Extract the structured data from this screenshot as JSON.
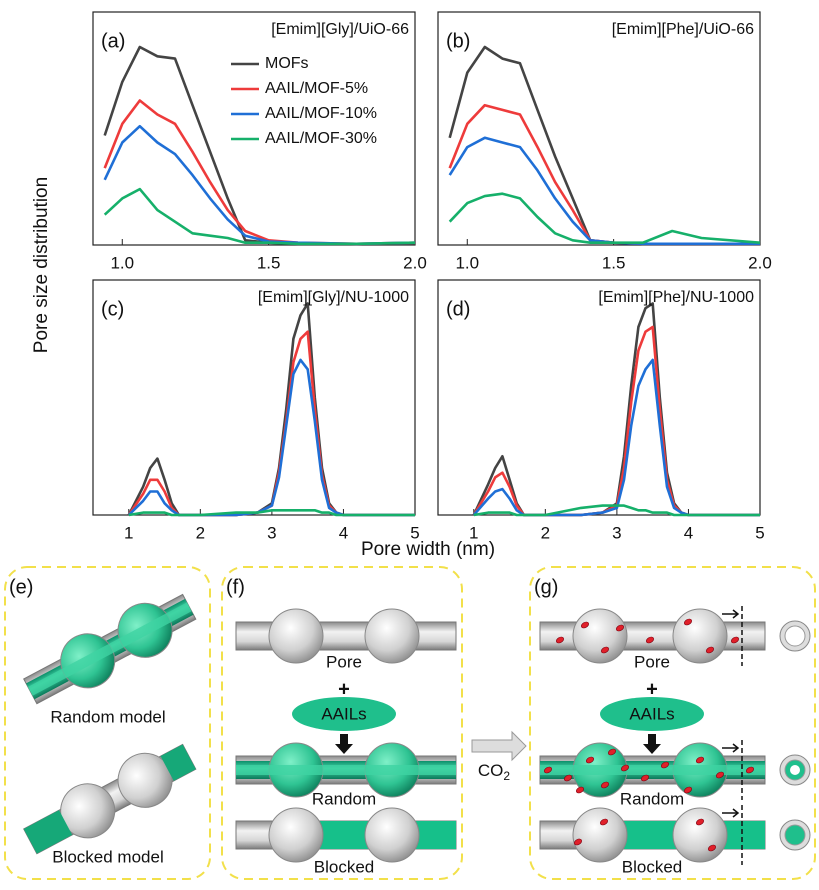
{
  "figure": {
    "y_label": "Pore size distribution",
    "x_label": "Pore width (nm)"
  },
  "chart_data": [
    {
      "type": "line",
      "panel": "(a)",
      "title": "[Emim][Gly]/UiO-66",
      "x": [
        0.94,
        1.0,
        1.06,
        1.12,
        1.18,
        1.24,
        1.3,
        1.36,
        1.42,
        1.5,
        1.6,
        1.8,
        2.0
      ],
      "xlim": [
        0.9,
        2.0
      ],
      "xticks": [
        {
          "value": 1,
          "label": "1.0"
        },
        1.5,
        {
          "value": 2,
          "label": "2.0"
        }
      ],
      "ylim": [
        0,
        1
      ],
      "legend": "upper center",
      "series": [
        {
          "name": "MOFs",
          "color": "#444444",
          "values": [
            0.47,
            0.7,
            0.85,
            0.81,
            0.8,
            0.6,
            0.4,
            0.2,
            0.02,
            0.01,
            0.005,
            0.005,
            0.005
          ]
        },
        {
          "name": "AAIL/MOF-5%",
          "color": "#ee3b3b",
          "values": [
            0.33,
            0.52,
            0.62,
            0.56,
            0.52,
            0.4,
            0.27,
            0.15,
            0.06,
            0.02,
            0.01,
            0.005,
            0.01
          ]
        },
        {
          "name": "AAIL/MOF-10%",
          "color": "#1f6fd6",
          "values": [
            0.28,
            0.44,
            0.51,
            0.44,
            0.39,
            0.3,
            0.2,
            0.11,
            0.04,
            0.015,
            0.01,
            0.005,
            0.01
          ]
        },
        {
          "name": "AAIL/MOF-30%",
          "color": "#16b06a",
          "values": [
            0.13,
            0.2,
            0.24,
            0.15,
            0.1,
            0.05,
            0.04,
            0.03,
            0.01,
            0.01,
            0.005,
            0.005,
            0.01
          ]
        }
      ]
    },
    {
      "type": "line",
      "panel": "(b)",
      "title": "[Emim][Phe]/UiO-66",
      "x": [
        0.94,
        1.0,
        1.06,
        1.12,
        1.18,
        1.24,
        1.3,
        1.36,
        1.42,
        1.5,
        1.6,
        1.7,
        1.8,
        2.0
      ],
      "xlim": [
        0.9,
        2.0
      ],
      "xticks": [
        {
          "value": 1,
          "label": "1.0"
        },
        1.5,
        {
          "value": 2,
          "label": "2.0"
        }
      ],
      "ylim": [
        0,
        1
      ],
      "series": [
        {
          "color": "#444444",
          "values": [
            0.46,
            0.74,
            0.85,
            0.8,
            0.78,
            0.58,
            0.38,
            0.2,
            0.02,
            0.01,
            0.005,
            0.005,
            0.005,
            0.005
          ]
        },
        {
          "color": "#ee3b3b",
          "values": [
            0.33,
            0.52,
            0.6,
            0.58,
            0.56,
            0.42,
            0.27,
            0.15,
            0.02,
            0.01,
            0.005,
            0.005,
            0.005,
            0.005
          ]
        },
        {
          "color": "#1f6fd6",
          "values": [
            0.3,
            0.42,
            0.46,
            0.44,
            0.42,
            0.32,
            0.2,
            0.1,
            0.02,
            0.01,
            0.005,
            0.005,
            0.005,
            0.005
          ]
        },
        {
          "color": "#16b06a",
          "values": [
            0.1,
            0.18,
            0.21,
            0.22,
            0.2,
            0.12,
            0.05,
            0.02,
            0.01,
            0.01,
            0.01,
            0.06,
            0.03,
            0.01
          ]
        }
      ]
    },
    {
      "type": "line",
      "panel": "(c)",
      "title": "[Emim][Gly]/NU-1000",
      "x": [
        1.0,
        1.2,
        1.3,
        1.4,
        1.5,
        1.6,
        1.7,
        2.0,
        2.5,
        2.8,
        3.0,
        3.1,
        3.2,
        3.3,
        3.4,
        3.5,
        3.6,
        3.7,
        3.8,
        3.9,
        4.0,
        4.5,
        5.0
      ],
      "xlim": [
        0.5,
        5
      ],
      "xticks": [
        1,
        2,
        3,
        4,
        5
      ],
      "ylim": [
        0,
        1
      ],
      "series": [
        {
          "color": "#444444",
          "values": [
            0,
            0.12,
            0.2,
            0.24,
            0.15,
            0.05,
            0,
            0,
            0,
            0.01,
            0.05,
            0.2,
            0.45,
            0.75,
            0.85,
            0.9,
            0.5,
            0.2,
            0.05,
            0.01,
            0,
            0,
            0
          ]
        },
        {
          "color": "#ee3b3b",
          "values": [
            0,
            0.09,
            0.15,
            0.15,
            0.1,
            0.03,
            0,
            0,
            0,
            0.01,
            0.04,
            0.18,
            0.4,
            0.65,
            0.75,
            0.78,
            0.45,
            0.17,
            0.04,
            0.01,
            0,
            0,
            0
          ]
        },
        {
          "color": "#1f6fd6",
          "values": [
            0,
            0.06,
            0.1,
            0.1,
            0.05,
            0.02,
            0,
            0,
            0,
            0.01,
            0.04,
            0.16,
            0.38,
            0.6,
            0.66,
            0.62,
            0.4,
            0.15,
            0.03,
            0.01,
            0,
            0,
            0
          ]
        },
        {
          "color": "#16b06a",
          "values": [
            0,
            0.01,
            0.01,
            0.01,
            0.01,
            0,
            0,
            0,
            0.01,
            0.01,
            0.02,
            0.02,
            0.02,
            0.02,
            0.02,
            0.02,
            0.02,
            0.01,
            0.01,
            0,
            0,
            0,
            0
          ]
        }
      ]
    },
    {
      "type": "line",
      "panel": "(d)",
      "title": "[Emim][Phe]/NU-1000",
      "x": [
        1.0,
        1.2,
        1.3,
        1.4,
        1.5,
        1.6,
        1.7,
        2.0,
        2.5,
        2.8,
        3.0,
        3.1,
        3.2,
        3.3,
        3.4,
        3.5,
        3.6,
        3.7,
        3.8,
        3.9,
        4.0,
        4.5,
        5.0
      ],
      "xlim": [
        0.5,
        5
      ],
      "xticks": [
        1,
        2,
        3,
        4,
        5
      ],
      "ylim": [
        0,
        1
      ],
      "series": [
        {
          "color": "#444444",
          "values": [
            0,
            0.13,
            0.2,
            0.25,
            0.15,
            0.05,
            0,
            0,
            0,
            0.01,
            0.05,
            0.25,
            0.55,
            0.8,
            0.88,
            0.9,
            0.5,
            0.18,
            0.05,
            0.01,
            0,
            0,
            0
          ]
        },
        {
          "color": "#ee3b3b",
          "values": [
            0,
            0.1,
            0.16,
            0.18,
            0.12,
            0.04,
            0,
            0,
            0,
            0.01,
            0.04,
            0.2,
            0.48,
            0.7,
            0.78,
            0.8,
            0.45,
            0.15,
            0.04,
            0.01,
            0,
            0,
            0
          ]
        },
        {
          "color": "#1f6fd6",
          "values": [
            0,
            0.07,
            0.1,
            0.11,
            0.07,
            0.02,
            0,
            0,
            0,
            0.01,
            0.03,
            0.15,
            0.38,
            0.55,
            0.62,
            0.66,
            0.38,
            0.12,
            0.03,
            0.01,
            0,
            0,
            0
          ]
        },
        {
          "color": "#16b06a",
          "values": [
            0,
            0.01,
            0.01,
            0.01,
            0.01,
            0,
            0,
            0,
            0.03,
            0.04,
            0.04,
            0.04,
            0.03,
            0.02,
            0.02,
            0.01,
            0.01,
            0.01,
            0,
            0,
            0,
            0,
            0
          ]
        }
      ]
    }
  ],
  "diagrams": {
    "e": {
      "label": "(e)",
      "captions": [
        "Random model",
        "Blocked model"
      ]
    },
    "f": {
      "label": "(f)",
      "captions": [
        "Pore",
        "AAILs",
        "Random",
        "Blocked"
      ]
    },
    "arrow": {
      "text": "CO",
      "subscript": "2"
    },
    "g": {
      "label": "(g)",
      "captions": [
        "Pore",
        "AAILs",
        "Random",
        "Blocked"
      ]
    }
  }
}
